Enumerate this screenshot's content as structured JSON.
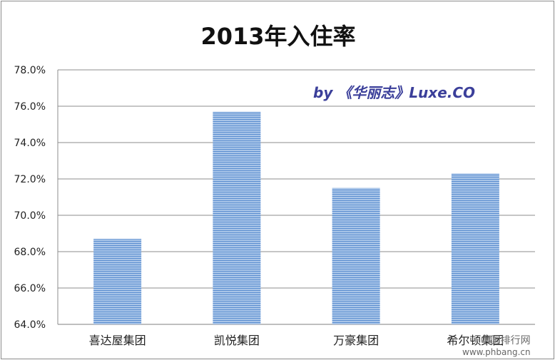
{
  "chart_data": {
    "type": "bar",
    "title": "2013年入住率",
    "categories": [
      "喜达屋集团",
      "凯悦集团",
      "万豪集团",
      "希尔顿集团"
    ],
    "values": [
      68.7,
      75.7,
      71.5,
      72.3
    ],
    "value_unit": "%",
    "ylim": [
      64.0,
      78.0
    ],
    "yticks": [
      "64.0%",
      "66.0%",
      "68.0%",
      "70.0%",
      "72.0%",
      "74.0%",
      "76.0%",
      "78.0%"
    ],
    "xlabel": "",
    "ylabel": "",
    "grid": true,
    "legend": "none",
    "bar_color": "#9bbbe0",
    "bar_stripe_color": "#5b8ed0",
    "annotation": "by 《华丽志》Luxe.CO"
  },
  "watermark_site": {
    "cn": "中国排行网",
    "url": "www.phbang.cn"
  }
}
